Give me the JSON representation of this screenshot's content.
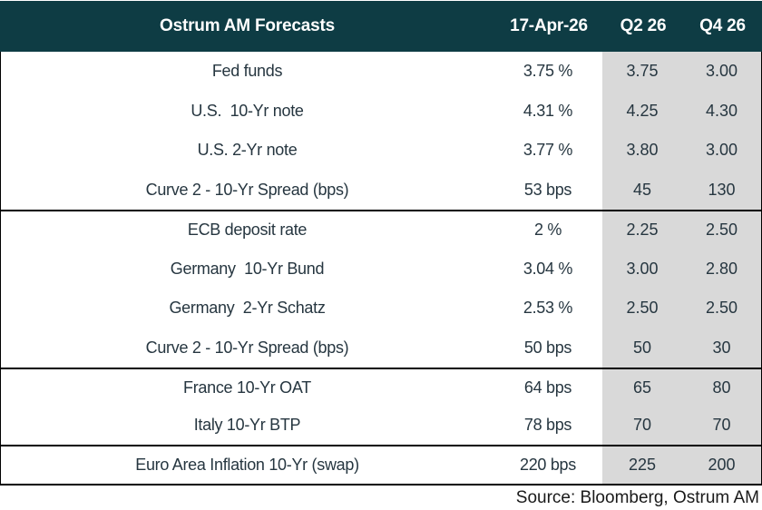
{
  "colors": {
    "header_bg": "#0e3c44",
    "header_text": "#ffffff",
    "body_text": "#263640",
    "highlight_column_bg": "#d9d9d9",
    "line": "#000000",
    "source_text": "#1a1a1a"
  },
  "header": {
    "title": "Ostrum AM Forecasts",
    "date": "17-Apr-26",
    "q2": "Q2 26",
    "q4": "Q4 26"
  },
  "rows": [
    {
      "label": "Fed funds",
      "current": "3.75 %",
      "q2": "3.75",
      "q4": "3.00"
    },
    {
      "label": "U.S.  10-Yr note",
      "current": "4.31 %",
      "q2": "4.25",
      "q4": "4.30"
    },
    {
      "label": "U.S. 2-Yr note",
      "current": "3.77 %",
      "q2": "3.80",
      "q4": "3.00"
    },
    {
      "label": "Curve 2 - 10-Yr Spread (bps)",
      "current": "53 bps",
      "q2": "45",
      "q4": "130"
    },
    {
      "label": "ECB deposit rate",
      "current": "2 %",
      "q2": "2.25",
      "q4": "2.50"
    },
    {
      "label": "Germany  10-Yr Bund",
      "current": "3.04 %",
      "q2": "3.00",
      "q4": "2.80"
    },
    {
      "label": "Germany  2-Yr Schatz",
      "current": "2.53 %",
      "q2": "2.50",
      "q4": "2.50"
    },
    {
      "label": "Curve 2 - 10-Yr Spread (bps)",
      "current": "50 bps",
      "q2": "50",
      "q4": "30"
    },
    {
      "label": "France 10-Yr OAT",
      "current": "64 bps",
      "q2": "65",
      "q4": "80"
    },
    {
      "label": "Italy 10-Yr BTP",
      "current": "78 bps",
      "q2": "70",
      "q4": "70"
    },
    {
      "label": "Euro Area Inflation 10-Yr (swap)",
      "current": "220 bps",
      "q2": "225",
      "q4": "200"
    }
  ],
  "footer": {
    "source": "Source: Bloomberg, Ostrum AM"
  },
  "chart_data": {
    "type": "table",
    "title": "Ostrum AM Forecasts",
    "columns": [
      "Ostrum AM Forecasts",
      "17-Apr-26",
      "Q2 26",
      "Q4 26"
    ],
    "rows": [
      [
        "Fed funds",
        "3.75 %",
        "3.75",
        "3.00"
      ],
      [
        "U.S. 10-Yr note",
        "4.31 %",
        "4.25",
        "4.30"
      ],
      [
        "U.S. 2-Yr note",
        "3.77 %",
        "3.80",
        "3.00"
      ],
      [
        "Curve 2 - 10-Yr Spread (bps)",
        "53 bps",
        "45",
        "130"
      ],
      [
        "ECB deposit rate",
        "2 %",
        "2.25",
        "2.50"
      ],
      [
        "Germany 10-Yr Bund",
        "3.04 %",
        "3.00",
        "2.80"
      ],
      [
        "Germany 2-Yr Schatz",
        "2.53 %",
        "2.50",
        "2.50"
      ],
      [
        "Curve 2 - 10-Yr Spread (bps)",
        "50 bps",
        "50",
        "30"
      ],
      [
        "France 10-Yr OAT",
        "64 bps",
        "65",
        "80"
      ],
      [
        "Italy 10-Yr BTP",
        "78 bps",
        "70",
        "70"
      ],
      [
        "Euro Area Inflation 10-Yr (swap)",
        "220 bps",
        "225",
        "200"
      ]
    ],
    "section_breaks_after_rows": [
      3,
      7,
      9
    ],
    "highlighted_columns": [
      "Q2 26",
      "Q4 26"
    ],
    "annotations": [
      "Source: Bloomberg, Ostrum AM"
    ]
  }
}
